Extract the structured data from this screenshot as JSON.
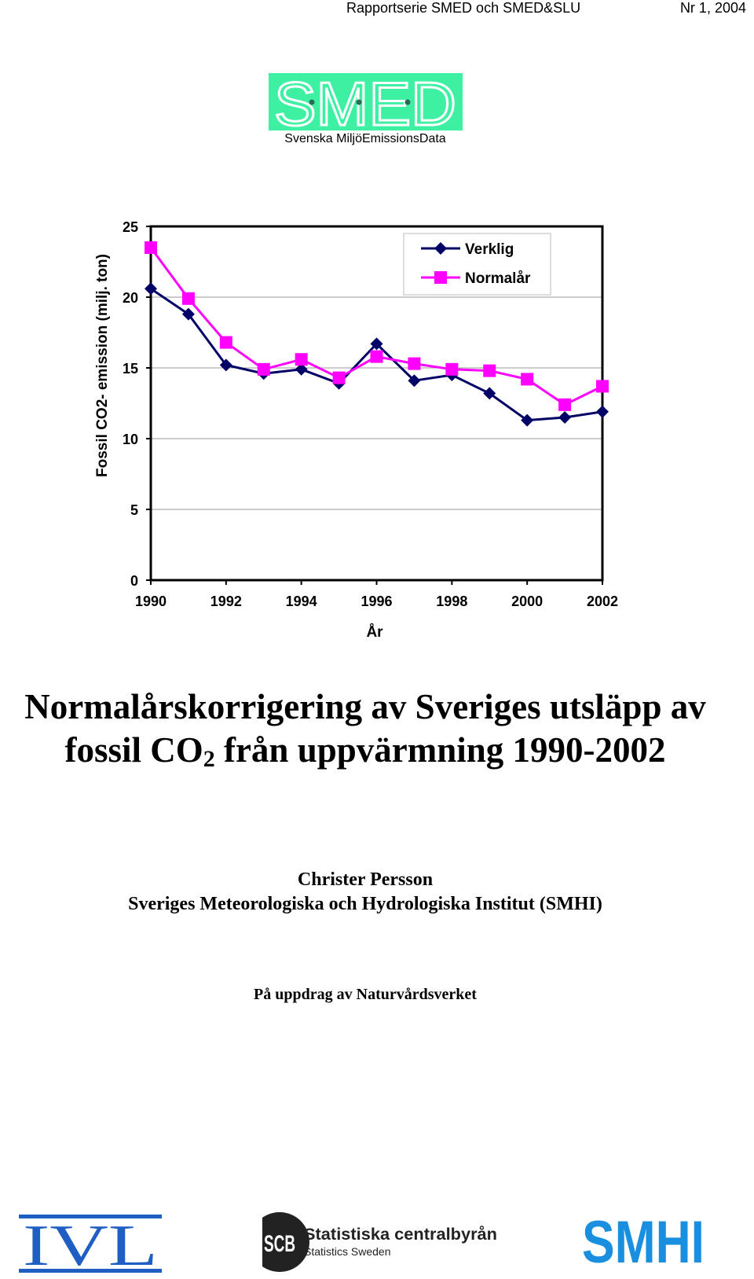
{
  "header": {
    "series": "Rapportserie SMED och SMED&SLU",
    "issue": "Nr 1, 2004"
  },
  "smed_logo": {
    "wordmark": "SMED",
    "subtitle": "Svenska MiljöEmissionsData",
    "color": "#3ef0a2"
  },
  "chart_data": {
    "type": "line",
    "x": [
      1990,
      1991,
      1992,
      1993,
      1994,
      1995,
      1996,
      1997,
      1998,
      1999,
      2000,
      2001,
      2002
    ],
    "series": [
      {
        "name": "Verklig",
        "color": "#000066",
        "marker": "diamond",
        "values": [
          20.6,
          18.8,
          15.2,
          14.6,
          14.9,
          13.9,
          16.7,
          14.1,
          14.5,
          13.2,
          11.3,
          11.5,
          11.9
        ]
      },
      {
        "name": "Normalår",
        "color": "#ff00ff",
        "marker": "square",
        "values": [
          23.5,
          19.9,
          16.8,
          14.9,
          15.6,
          14.3,
          15.8,
          15.3,
          14.9,
          14.8,
          14.2,
          12.4,
          13.7
        ]
      }
    ],
    "xlabel": "År",
    "ylabel": "Fossil CO2- emission (milj. ton)",
    "ylim": [
      0,
      25
    ],
    "yticks": [
      0,
      5,
      10,
      15,
      20,
      25
    ],
    "xticks": [
      1990,
      1992,
      1994,
      1996,
      1998,
      2000,
      2002
    ],
    "grid": true,
    "legend": "top-right"
  },
  "title": {
    "line1": "Normalårskorrigering av Sveriges utsläpp av",
    "line2_pre": "fossil CO",
    "line2_sub": "2",
    "line2_post": " från uppvärmning 1990-2002"
  },
  "author": {
    "name": "Christer Persson",
    "affiliation": "Sveriges Meteorologiska och Hydrologiska Institut (SMHI)"
  },
  "commission": "På uppdrag av Naturvårdsverket",
  "logos": {
    "ivl": "IVL",
    "scb_mark": "SCB",
    "scb_name": "Statistiska centralbyrån",
    "scb_en": "Statistics Sweden",
    "smhi": "SMHI",
    "ivl_color": "#1f5fc4",
    "smhi_color": "#1a8fe0"
  }
}
